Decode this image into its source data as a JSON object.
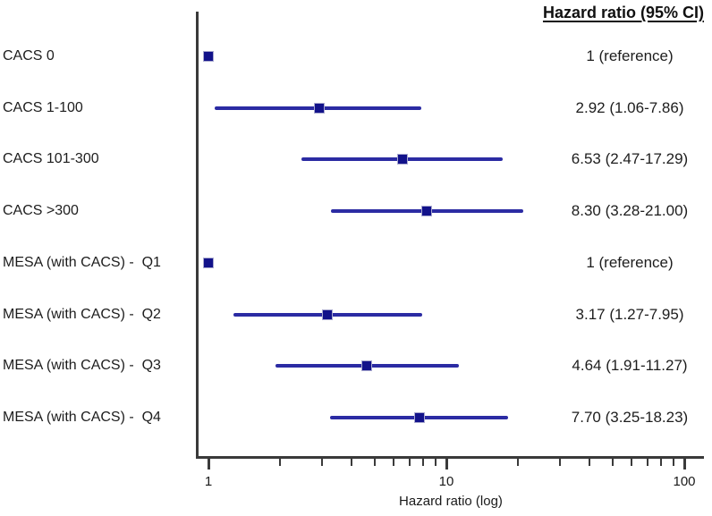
{
  "header": {
    "column_title": "Hazard ratio (95% CI)"
  },
  "chart_data": {
    "type": "forest",
    "title": "",
    "xlabel": "Hazard ratio (log)",
    "x_scale": "log",
    "xlim": [
      1,
      100
    ],
    "x_major_ticks": [
      1,
      10,
      100
    ],
    "x_minor_ticks": [
      2,
      3,
      4,
      5,
      6,
      7,
      8,
      9,
      20,
      30,
      40,
      50,
      60,
      70,
      80,
      90
    ],
    "value_column_header": "Hazard ratio (95% CI)",
    "rows": [
      {
        "label": "CACS 0",
        "hr": 1.0,
        "ci_low": null,
        "ci_high": null,
        "display": "1 (reference)"
      },
      {
        "label": "CACS 1-100",
        "hr": 2.92,
        "ci_low": 1.06,
        "ci_high": 7.86,
        "display": "2.92 (1.06-7.86)"
      },
      {
        "label": "CACS 101-300",
        "hr": 6.53,
        "ci_low": 2.47,
        "ci_high": 17.29,
        "display": "6.53 (2.47-17.29)"
      },
      {
        "label": "CACS >300",
        "hr": 8.3,
        "ci_low": 3.28,
        "ci_high": 21.0,
        "display": "8.30 (3.28-21.00)"
      },
      {
        "label": "MESA (with CACS) -  Q1",
        "hr": 1.0,
        "ci_low": null,
        "ci_high": null,
        "display": "1 (reference)"
      },
      {
        "label": "MESA (with CACS) -  Q2",
        "hr": 3.17,
        "ci_low": 1.27,
        "ci_high": 7.95,
        "display": "3.17 (1.27-7.95)"
      },
      {
        "label": "MESA (with CACS) -  Q3",
        "hr": 4.64,
        "ci_low": 1.91,
        "ci_high": 11.27,
        "display": "4.64 (1.91-11.27)"
      },
      {
        "label": "MESA (with CACS) -  Q4",
        "hr": 7.7,
        "ci_low": 3.25,
        "ci_high": 18.23,
        "display": "7.70 (3.25-18.23)"
      }
    ],
    "colors": {
      "ci_line": "#2b2ba3",
      "marker": "#12128a",
      "axis": "#3a3a3a",
      "text": "#1d1d1d"
    }
  }
}
